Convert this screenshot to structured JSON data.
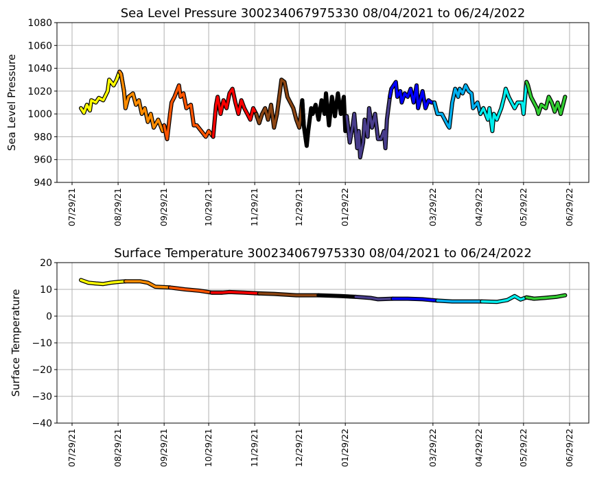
{
  "chart_data": [
    {
      "type": "line",
      "title": "Sea Level Pressure 300234067975330  08/04/2021 to 06/24/2022",
      "xlabel": "",
      "ylabel": "Sea Level Pressure",
      "ylim": [
        940,
        1080
      ],
      "yticks": [
        940,
        960,
        980,
        1000,
        1020,
        1040,
        1060,
        1080
      ],
      "x_origin": "2021-08-04",
      "grid": true,
      "points": [
        [
          0,
          1005
        ],
        [
          2,
          1001
        ],
        [
          4,
          1008
        ],
        [
          6,
          1003
        ],
        [
          7,
          1012
        ],
        [
          10,
          1010
        ],
        [
          12,
          1014
        ],
        [
          15,
          1012
        ],
        [
          18,
          1020
        ],
        [
          19,
          1030
        ],
        [
          22,
          1025
        ],
        [
          24,
          1030
        ],
        [
          26,
          1037
        ],
        [
          27,
          1035
        ],
        [
          29,
          1020
        ],
        [
          30,
          1005
        ],
        [
          32,
          1015
        ],
        [
          35,
          1018
        ],
        [
          37,
          1008
        ],
        [
          39,
          1012
        ],
        [
          41,
          1000
        ],
        [
          43,
          1005
        ],
        [
          45,
          993
        ],
        [
          47,
          1000
        ],
        [
          49,
          988
        ],
        [
          52,
          995
        ],
        [
          55,
          985
        ],
        [
          56,
          990
        ],
        [
          58,
          978
        ],
        [
          60,
          1000
        ],
        [
          61,
          1010
        ],
        [
          63,
          1015
        ],
        [
          66,
          1025
        ],
        [
          67,
          1015
        ],
        [
          69,
          1018
        ],
        [
          71,
          1005
        ],
        [
          74,
          1008
        ],
        [
          76,
          990
        ],
        [
          78,
          990
        ],
        [
          81,
          985
        ],
        [
          84,
          980
        ],
        [
          86,
          985
        ],
        [
          89,
          980
        ],
        [
          91,
          1008
        ],
        [
          92,
          1015
        ],
        [
          94,
          1000
        ],
        [
          96,
          1012
        ],
        [
          98,
          1005
        ],
        [
          100,
          1018
        ],
        [
          102,
          1022
        ],
        [
          104,
          1010
        ],
        [
          106,
          1000
        ],
        [
          108,
          1012
        ],
        [
          110,
          1005
        ],
        [
          112,
          1000
        ],
        [
          114,
          995
        ],
        [
          116,
          1005
        ],
        [
          118,
          1000
        ],
        [
          120,
          992
        ],
        [
          122,
          1000
        ],
        [
          124,
          1005
        ],
        [
          126,
          995
        ],
        [
          128,
          1008
        ],
        [
          130,
          988
        ],
        [
          132,
          1000
        ],
        [
          134,
          1020
        ],
        [
          135,
          1030
        ],
        [
          137,
          1028
        ],
        [
          139,
          1015
        ],
        [
          141,
          1010
        ],
        [
          143,
          1005
        ],
        [
          145,
          995
        ],
        [
          147,
          988
        ],
        [
          149,
          1012
        ],
        [
          150,
          990
        ],
        [
          152,
          972
        ],
        [
          153,
          985
        ],
        [
          155,
          1005
        ],
        [
          156,
          1000
        ],
        [
          158,
          1008
        ],
        [
          160,
          995
        ],
        [
          162,
          1012
        ],
        [
          164,
          1000
        ],
        [
          165,
          1018
        ],
        [
          167,
          990
        ],
        [
          169,
          1015
        ],
        [
          171,
          998
        ],
        [
          173,
          1018
        ],
        [
          175,
          1000
        ],
        [
          177,
          1015
        ],
        [
          178,
          985
        ],
        [
          179,
          998
        ],
        [
          181,
          975
        ],
        [
          183,
          990
        ],
        [
          184,
          1000
        ],
        [
          186,
          970
        ],
        [
          187,
          985
        ],
        [
          188,
          962
        ],
        [
          190,
          975
        ],
        [
          191,
          995
        ],
        [
          193,
          980
        ],
        [
          194,
          1005
        ],
        [
          196,
          988
        ],
        [
          198,
          1000
        ],
        [
          200,
          978
        ],
        [
          202,
          978
        ],
        [
          204,
          985
        ],
        [
          205,
          970
        ],
        [
          206,
          995
        ],
        [
          208,
          1015
        ],
        [
          209,
          1022
        ],
        [
          212,
          1028
        ],
        [
          213,
          1015
        ],
        [
          215,
          1020
        ],
        [
          216,
          1010
        ],
        [
          218,
          1018
        ],
        [
          220,
          1015
        ],
        [
          222,
          1022
        ],
        [
          224,
          1010
        ],
        [
          226,
          1025
        ],
        [
          227,
          1005
        ],
        [
          230,
          1020
        ],
        [
          232,
          1005
        ],
        [
          234,
          1012
        ],
        [
          236,
          1010
        ],
        [
          238,
          1010
        ],
        [
          240,
          1000
        ],
        [
          243,
          1000
        ],
        [
          245,
          995
        ],
        [
          247,
          990
        ],
        [
          248,
          988
        ],
        [
          250,
          1010
        ],
        [
          252,
          1022
        ],
        [
          254,
          1015
        ],
        [
          255,
          1022
        ],
        [
          257,
          1018
        ],
        [
          259,
          1025
        ],
        [
          261,
          1020
        ],
        [
          263,
          1018
        ],
        [
          264,
          1005
        ],
        [
          267,
          1010
        ],
        [
          269,
          1000
        ],
        [
          271,
          1005
        ],
        [
          274,
          995
        ],
        [
          275,
          1005
        ],
        [
          277,
          985
        ],
        [
          278,
          1000
        ],
        [
          280,
          995
        ],
        [
          283,
          1005
        ],
        [
          285,
          1015
        ],
        [
          286,
          1022
        ],
        [
          288,
          1015
        ],
        [
          290,
          1010
        ],
        [
          292,
          1005
        ],
        [
          294,
          1010
        ],
        [
          297,
          1010
        ],
        [
          298,
          1000
        ],
        [
          300,
          1028
        ],
        [
          301,
          1025
        ],
        [
          303,
          1015
        ],
        [
          305,
          1010
        ],
        [
          307,
          1005
        ],
        [
          308,
          1000
        ],
        [
          310,
          1008
        ],
        [
          313,
          1005
        ],
        [
          315,
          1015
        ],
        [
          317,
          1010
        ],
        [
          319,
          1002
        ],
        [
          321,
          1010
        ],
        [
          323,
          1000
        ],
        [
          326,
          1015
        ]
      ]
    },
    {
      "type": "line",
      "title": "Surface Temperature 300234067975330  08/04/2021 to 06/24/2022",
      "xlabel": "",
      "ylabel": "Surface Temperature",
      "ylim": [
        -40,
        20
      ],
      "yticks": [
        -40,
        -30,
        -20,
        -10,
        0,
        10,
        20
      ],
      "x_origin": "2021-08-04",
      "grid": true,
      "points": [
        [
          0,
          13.5
        ],
        [
          5,
          12.5
        ],
        [
          10,
          12.2
        ],
        [
          15,
          12
        ],
        [
          20,
          12.5
        ],
        [
          25,
          12.8
        ],
        [
          30,
          13
        ],
        [
          40,
          13
        ],
        [
          45,
          12.5
        ],
        [
          50,
          11
        ],
        [
          60,
          10.7
        ],
        [
          70,
          10
        ],
        [
          80,
          9.5
        ],
        [
          88,
          8.8
        ],
        [
          95,
          8.8
        ],
        [
          100,
          9
        ],
        [
          110,
          8.8
        ],
        [
          120,
          8.5
        ],
        [
          130,
          8.3
        ],
        [
          145,
          7.8
        ],
        [
          160,
          7.8
        ],
        [
          175,
          7.5
        ],
        [
          185,
          7.2
        ],
        [
          195,
          6.8
        ],
        [
          200,
          6.3
        ],
        [
          210,
          6.5
        ],
        [
          220,
          6.5
        ],
        [
          230,
          6.3
        ],
        [
          240,
          5.8
        ],
        [
          250,
          5.5
        ],
        [
          260,
          5.5
        ],
        [
          270,
          5.5
        ],
        [
          280,
          5.3
        ],
        [
          287,
          6
        ],
        [
          292,
          7.5
        ],
        [
          296,
          6.2
        ],
        [
          300,
          7
        ],
        [
          305,
          6.5
        ],
        [
          312,
          6.8
        ],
        [
          320,
          7.2
        ],
        [
          326,
          7.8
        ]
      ]
    }
  ],
  "xticks": [
    "07/29/21",
    "08/29/21",
    "09/29/21",
    "10/29/21",
    "11/29/21",
    "12/29/21",
    "01/29/22",
    "03/29/22",
    "04/29/22",
    "05/29/22",
    "06/29/22"
  ],
  "months": [
    {
      "name": "aug",
      "start": 0,
      "color": "#ffff00"
    },
    {
      "name": "sep",
      "start": 28,
      "color": "#ff8c00"
    },
    {
      "name": "oct",
      "start": 58,
      "color": "#ff5500"
    },
    {
      "name": "nov",
      "start": 89,
      "color": "#ff0000"
    },
    {
      "name": "dec",
      "start": 119,
      "color": "#8b4513"
    },
    {
      "name": "jan",
      "start": 150,
      "color": "#000000"
    },
    {
      "name": "feb",
      "start": 181,
      "color": "#483d8b"
    },
    {
      "name": "mar",
      "start": 209,
      "color": "#0000ff"
    },
    {
      "name": "apr",
      "start": 240,
      "color": "#00b0f0"
    },
    {
      "name": "may",
      "start": 270,
      "color": "#00eeee"
    },
    {
      "name": "jun",
      "start": 301,
      "color": "#32cd32"
    }
  ]
}
